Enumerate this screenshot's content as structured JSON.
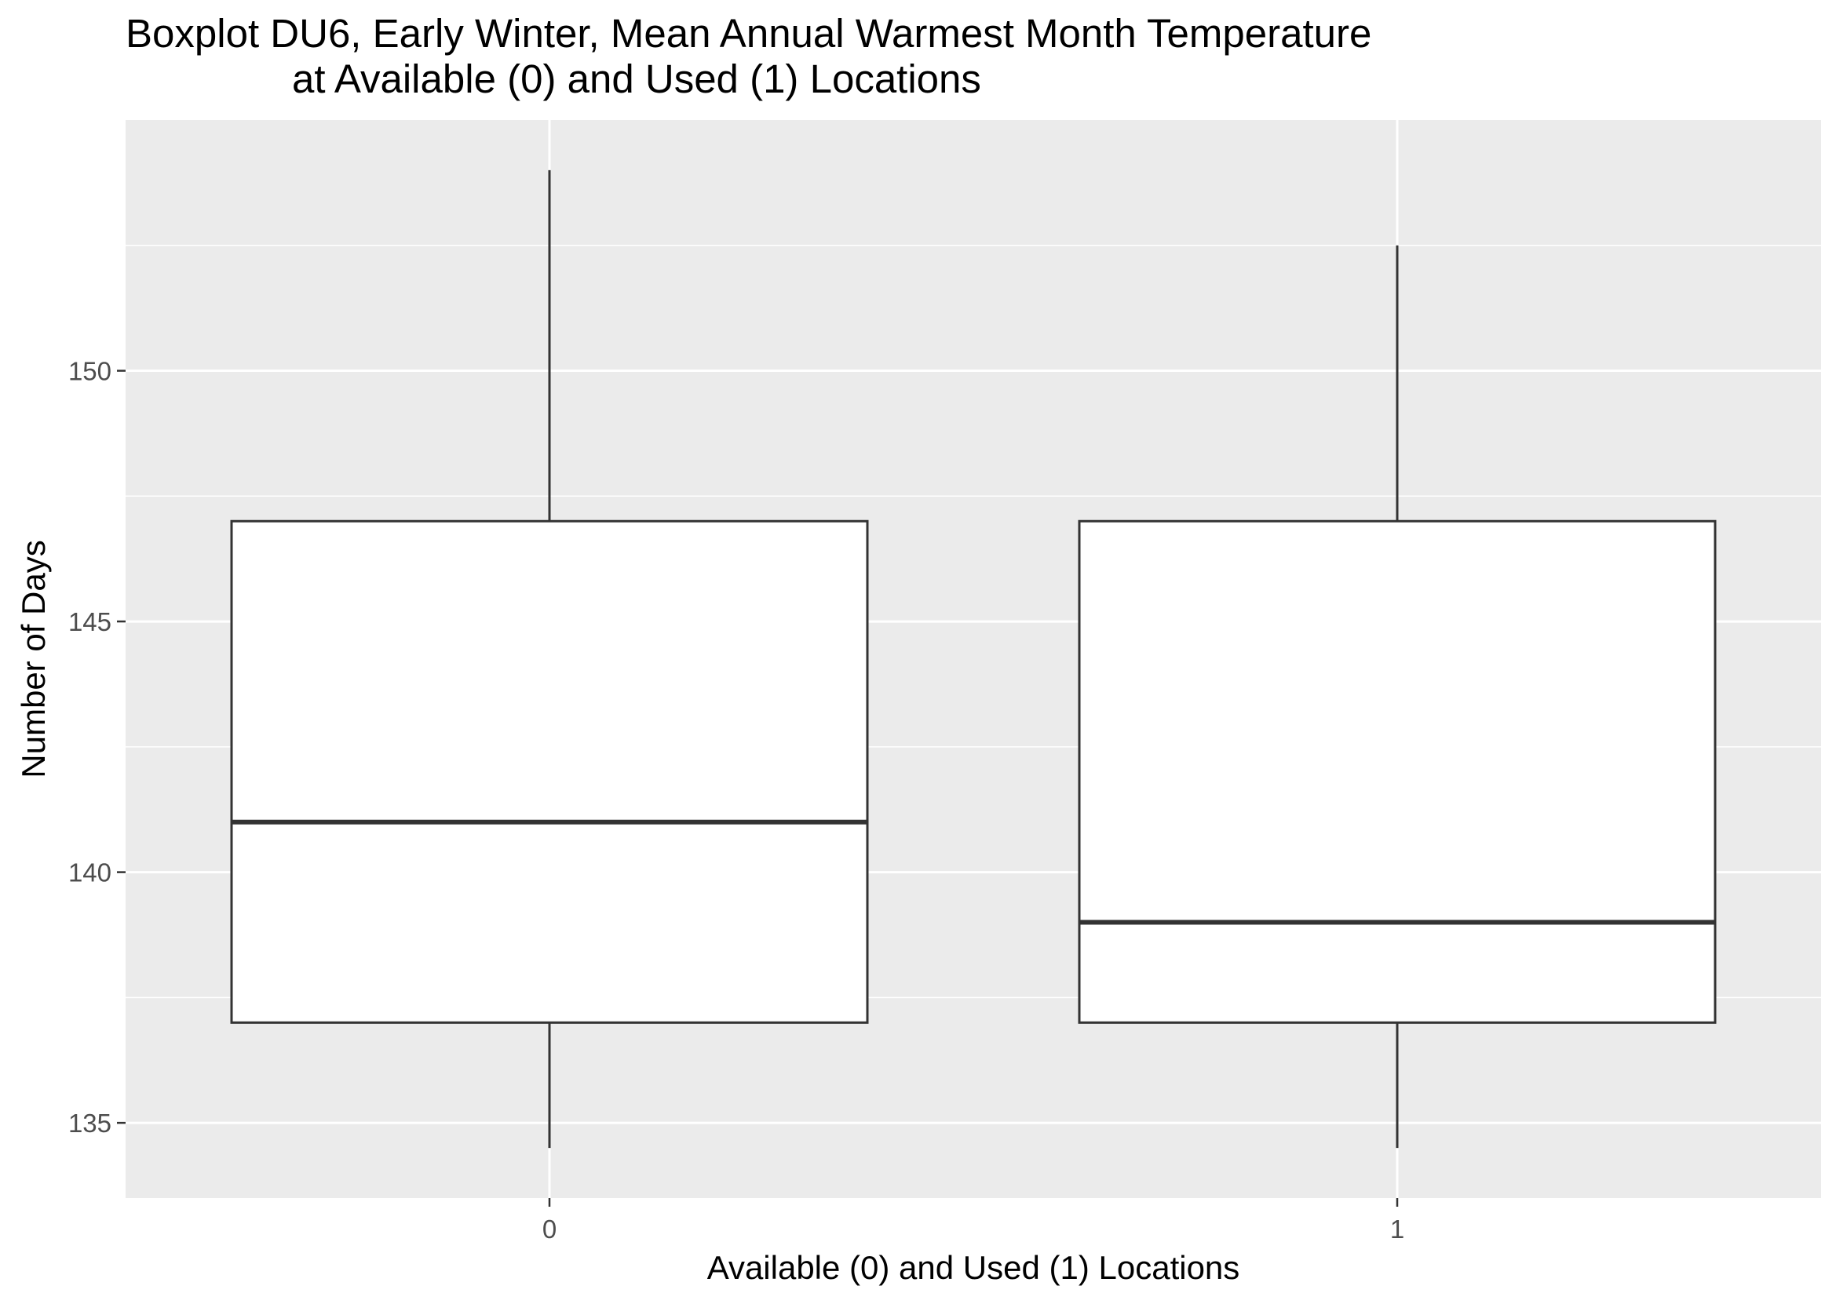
{
  "chart_data": {
    "type": "boxplot",
    "title_line1": "Boxplot DU6, Early Winter, Mean Annual Warmest Month Temperature",
    "title_line2": "at Available (0) and Used (1) Locations",
    "xlabel": "Available (0) and Used (1) Locations",
    "ylabel": "Number of Days",
    "categories": [
      "0",
      "1"
    ],
    "ylim": [
      133.5,
      155
    ],
    "yticks": [
      135,
      140,
      145,
      150
    ],
    "grid": true,
    "boxes": [
      {
        "category": "0",
        "min": 134.5,
        "q1": 137,
        "median": 141,
        "q3": 147,
        "max": 154
      },
      {
        "category": "1",
        "min": 134.5,
        "q1": 137,
        "median": 139,
        "q3": 147,
        "max": 152.5
      }
    ],
    "colors": {
      "panel": "#ebebeb",
      "grid": "#ffffff",
      "box_fill": "#ffffff",
      "box_stroke": "#333333"
    }
  }
}
